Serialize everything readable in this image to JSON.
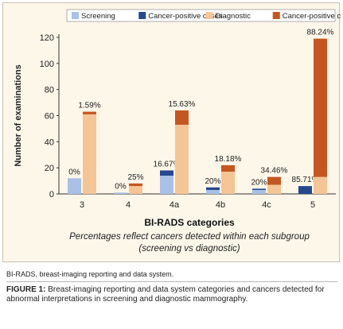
{
  "chart_data": {
    "type": "bar",
    "categories": [
      "3",
      "4",
      "4a",
      "4b",
      "4c",
      "5"
    ],
    "xlabel": "BI-RADS categories",
    "ylabel": "Number of examinations",
    "ylim": [
      0,
      120
    ],
    "yticks": [
      0,
      20,
      40,
      60,
      80,
      100,
      120
    ],
    "grid": false,
    "legend_position": "top",
    "groups": [
      {
        "name": "Screening",
        "series": [
          {
            "name": "Screening",
            "color": "#a9c1e6",
            "values": [
              12,
              1,
              14,
              3,
              3,
              0
            ]
          },
          {
            "name": "Cancer-positive cases",
            "color": "#24498f",
            "values": [
              0,
              0,
              4,
              2,
              1,
              6
            ]
          }
        ],
        "labels": [
          "0%",
          "0%",
          "16.67%",
          "20%",
          "20%",
          "85.71%"
        ]
      },
      {
        "name": "Diagnostic",
        "series": [
          {
            "name": "Diagnostic",
            "color": "#f5c596",
            "values": [
              61,
              6,
              53,
              17,
              7,
              13
            ]
          },
          {
            "name": "Cancer-positive cases",
            "color": "#c6561f",
            "values": [
              2,
              2,
              11,
              5,
              6,
              106
            ]
          }
        ],
        "labels": [
          "1.59%",
          "25%",
          "15.63%",
          "18.18%",
          "34.46%",
          "88.24%"
        ]
      }
    ],
    "subtitle_lines": [
      "Percentages reflect cancers detected within each subgroup",
      "(screening vs diagnostic)"
    ]
  },
  "footnote": "BI-RADS, breast-imaging reporting and data system.",
  "caption_label": "FIGURE 1:",
  "caption_text": " Breast-imaging reporting and data system categories and cancers detected for abnormal interpretations in screening and diagnostic mammography."
}
